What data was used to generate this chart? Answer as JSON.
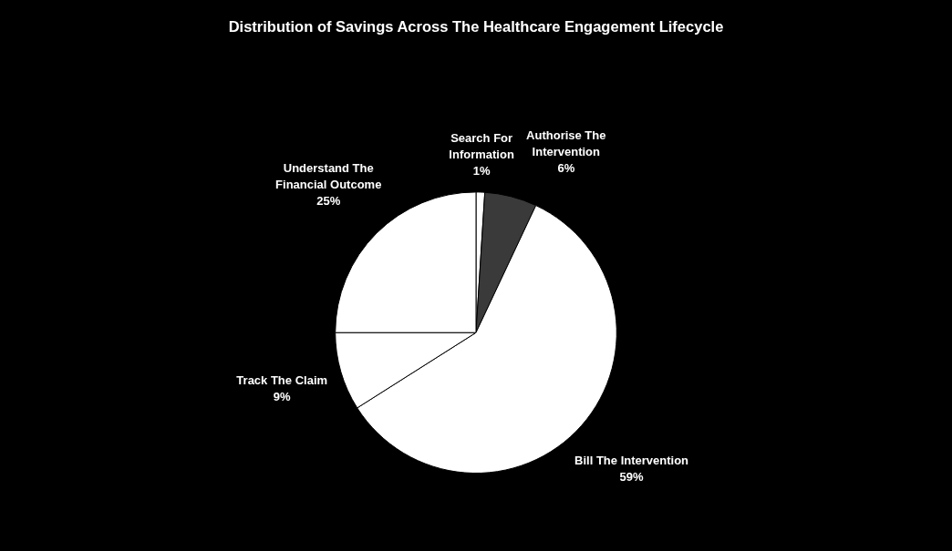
{
  "chart_data": {
    "type": "pie",
    "title": "Distribution of Savings Across The Healthcare Engagement Lifecycle",
    "categories": [
      "Search For Information",
      "Authorise The Intervention",
      "Bill The Intervention",
      "Track The Claim",
      "Understand The Financial Outcome"
    ],
    "values": [
      1,
      6,
      59,
      9,
      25
    ],
    "value_labels": [
      "1%",
      "6%",
      "59%",
      "9%",
      "25%"
    ],
    "colors": [
      "#ffffff",
      "#3a3a3a",
      "#ffffff",
      "#ffffff",
      "#ffffff"
    ],
    "legend": false
  }
}
